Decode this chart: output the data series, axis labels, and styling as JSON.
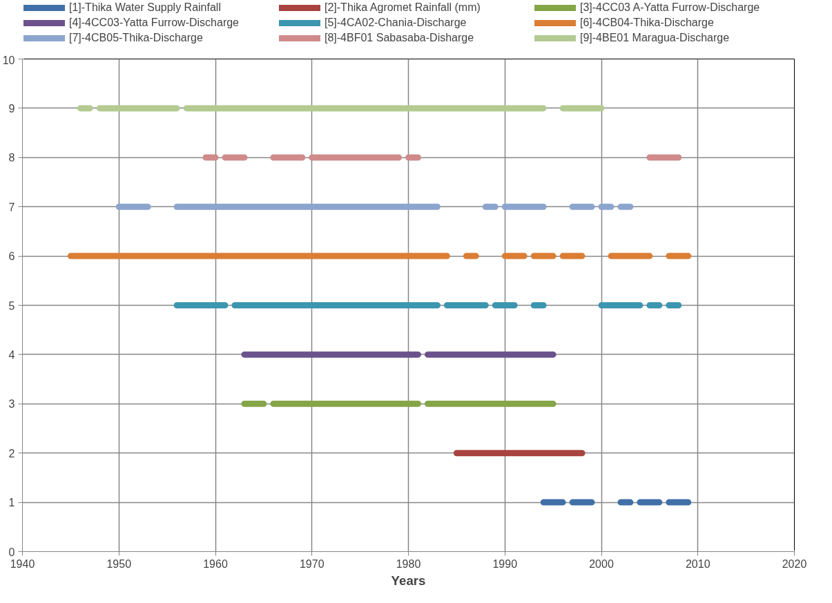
{
  "chart_data": {
    "type": "line",
    "xlabel": "Years",
    "xlim": [
      1940,
      2020
    ],
    "xticks": [
      1940,
      1950,
      1960,
      1970,
      1980,
      1990,
      2000,
      2010,
      2020
    ],
    "ylim": [
      0,
      10
    ],
    "yticks": [
      0,
      1,
      2,
      3,
      4,
      5,
      6,
      7,
      8,
      9,
      10
    ],
    "grid": true,
    "legend": "top",
    "marker": "none",
    "line_style": "solid",
    "series": [
      {
        "name": "[1]-Thika Water Supply Rainfall",
        "color": "#4170a8",
        "x": [
          1994,
          1996,
          1996.5,
          1997,
          1999,
          2000,
          2002,
          2003,
          2003.5,
          2004,
          2006,
          2006.5,
          2007,
          2009
        ],
        "values": [
          1,
          1,
          null,
          1,
          1,
          null,
          1,
          1,
          null,
          1,
          1,
          null,
          1,
          1
        ]
      },
      {
        "name": "[2]-Thika Agromet Rainfall (mm)",
        "color": "#a8433f",
        "x": [
          1985,
          1998
        ],
        "values": [
          2,
          2
        ]
      },
      {
        "name": "[3]-4CC03 A-Yatta Furrow-Discharge",
        "color": "#85a547",
        "x": [
          1963,
          1965,
          1965.5,
          1966,
          1981,
          1981.5,
          1982,
          1995
        ],
        "values": [
          3,
          3,
          null,
          3,
          3,
          null,
          3,
          3
        ]
      },
      {
        "name": "[4]-4CC03-Yatta Furrow-Discharge",
        "color": "#6b528c",
        "x": [
          1963,
          1981,
          1981.5,
          1982,
          1995
        ],
        "values": [
          4,
          4,
          null,
          4,
          4
        ]
      },
      {
        "name": "[5]-4CA02-Chania-Discharge",
        "color": "#3c96b0",
        "x": [
          1956,
          1961,
          1961.5,
          1962,
          1983,
          1983.5,
          1984,
          1988,
          1988.5,
          1989,
          1991,
          1992,
          1993,
          1994,
          1997,
          2000,
          2004,
          2004.5,
          2005,
          2006,
          2006.5,
          2007,
          2008
        ],
        "values": [
          5,
          5,
          null,
          5,
          5,
          null,
          5,
          5,
          null,
          5,
          5,
          null,
          5,
          5,
          null,
          5,
          5,
          null,
          5,
          5,
          null,
          5,
          5
        ]
      },
      {
        "name": "[6]-4CB04-Thika-Discharge",
        "color": "#db7e35",
        "x": [
          1945,
          1984,
          1985,
          1986,
          1987,
          1988,
          1990,
          1992,
          1992.5,
          1993,
          1995,
          1995.5,
          1996,
          1998,
          1999,
          2001,
          2005,
          2006,
          2007,
          2009
        ],
        "values": [
          6,
          6,
          null,
          6,
          6,
          null,
          6,
          6,
          null,
          6,
          6,
          null,
          6,
          6,
          null,
          6,
          6,
          null,
          6,
          6
        ]
      },
      {
        "name": "[7]-4CB05-Thika-Discharge",
        "color": "#8ca5cd",
        "x": [
          1950,
          1953,
          1954,
          1956,
          1983,
          1985,
          1988,
          1989,
          1989.5,
          1990,
          1994,
          1995,
          1997,
          1999,
          1999.5,
          2000,
          2001,
          2001.5,
          2002,
          2003
        ],
        "values": [
          7,
          7,
          null,
          7,
          7,
          null,
          7,
          7,
          null,
          7,
          7,
          null,
          7,
          7,
          null,
          7,
          7,
          null,
          7,
          7
        ]
      },
      {
        "name": "[8]-4BF01 Sabasaba-Disharge",
        "color": "#d08a8a",
        "x": [
          1959,
          1960,
          1960.5,
          1961,
          1963,
          1964,
          1966,
          1969,
          1969.5,
          1970,
          1979,
          1979.5,
          1980,
          1981,
          1990,
          2005,
          2008
        ],
        "values": [
          8,
          8,
          null,
          8,
          8,
          null,
          8,
          8,
          null,
          8,
          8,
          null,
          8,
          8,
          null,
          8,
          8
        ]
      },
      {
        "name": "[9]-4BE01 Maragua-Discharge",
        "color": "#b3ca92",
        "x": [
          1946,
          1947,
          1947.5,
          1948,
          1956,
          1956.5,
          1957,
          1994,
          1995,
          1996,
          2000
        ],
        "values": [
          9,
          9,
          null,
          9,
          9,
          null,
          9,
          9,
          null,
          9,
          9
        ]
      }
    ]
  }
}
